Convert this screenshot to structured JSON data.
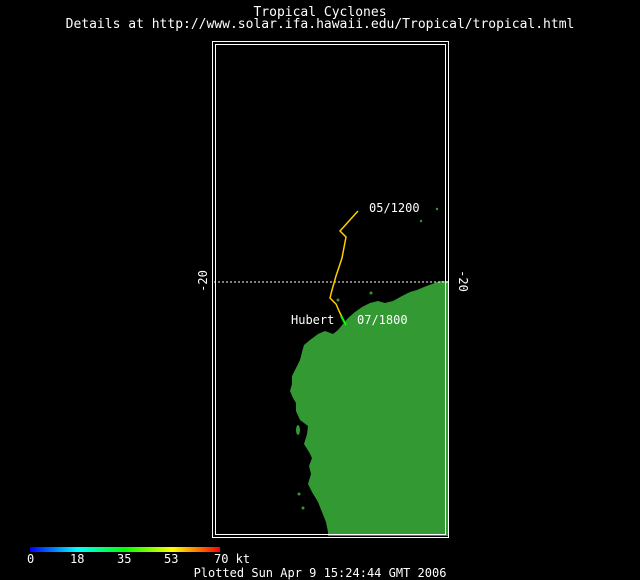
{
  "header": {
    "title": "Tropical Cyclones",
    "subtitle": "Details at http://www.solar.ifa.hawaii.edu/Tropical/tropical.html"
  },
  "map": {
    "latitude_label_left": "-20",
    "latitude_label_right": "-20",
    "land_color": "#339933",
    "frame_color": "#ffffff"
  },
  "storm": {
    "name": "Hubert",
    "start_label": "05/1200",
    "end_label": "07/1800",
    "track_color": "#ffcc00",
    "end_color": "#00ff00"
  },
  "legend": {
    "ticks": [
      "0",
      "18",
      "35",
      "53",
      "70 kt"
    ],
    "colors": [
      "#0000ff",
      "#00ffff",
      "#00ff00",
      "#ffff00",
      "#ff0000"
    ]
  },
  "footer": {
    "plotted": "Plotted Sun Apr 9 15:24:44 GMT 2006"
  }
}
